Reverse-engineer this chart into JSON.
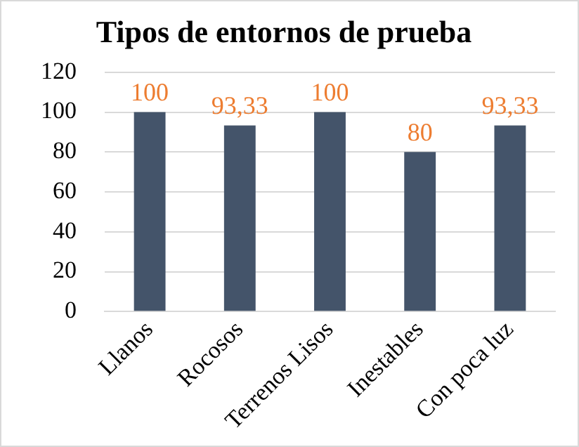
{
  "chart_data": {
    "type": "bar",
    "title": "Tipos de entornos de prueba",
    "categories": [
      "Llanos",
      "Rocosos",
      "Terrenos Lisos",
      "Inestables",
      "Con poca luz"
    ],
    "values": [
      100,
      93.33,
      100,
      80,
      93.33
    ],
    "value_labels": [
      "100",
      "93,33",
      "100",
      "80",
      "93,33"
    ],
    "color": "#44546a",
    "ylim": [
      0,
      120
    ],
    "yticks": [
      0,
      20,
      40,
      60,
      80,
      100,
      120
    ],
    "grid": "y",
    "legend": false
  }
}
